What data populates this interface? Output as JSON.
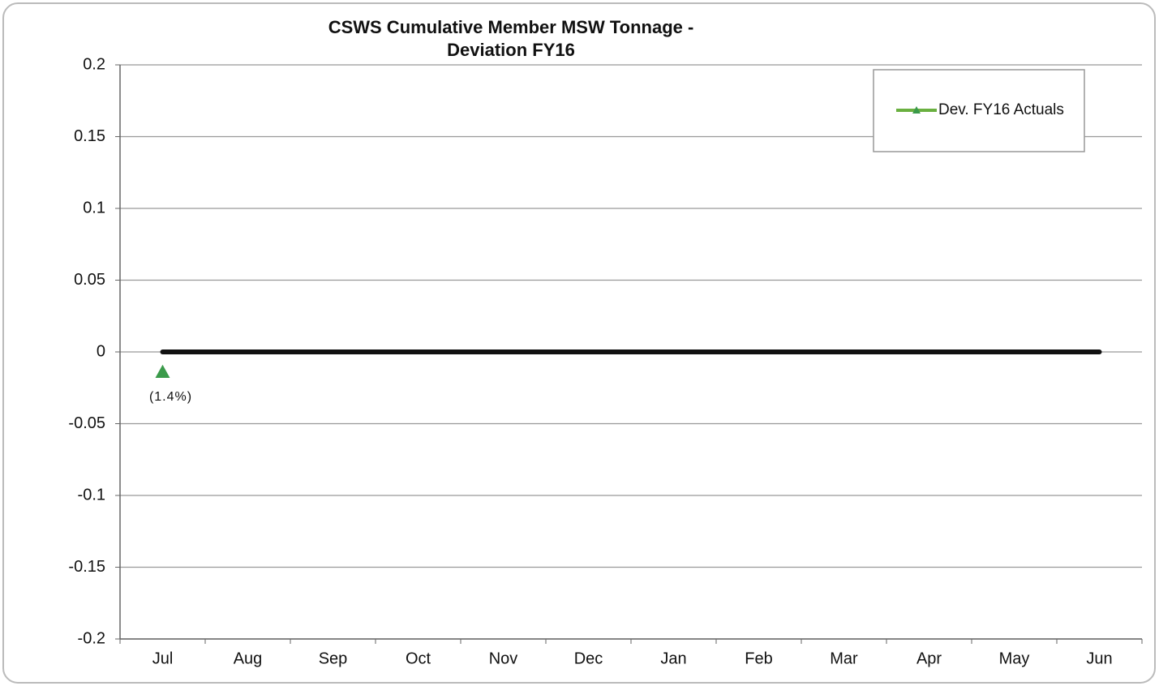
{
  "chart_data": {
    "type": "line",
    "title": "CSWS Cumulative Member MSW Tonnage - Deviation FY16",
    "categories": [
      "Jul",
      "Aug",
      "Sep",
      "Oct",
      "Nov",
      "Dec",
      "Jan",
      "Feb",
      "Mar",
      "Apr",
      "May",
      "Jun"
    ],
    "series": [
      {
        "name": "Dev. FY16 Actuals",
        "color": "#3a9a4a",
        "values": [
          -0.014,
          null,
          null,
          null,
          null,
          null,
          null,
          null,
          null,
          null,
          null,
          null
        ],
        "value_labels": [
          "(1.4%)",
          null,
          null,
          null,
          null,
          null,
          null,
          null,
          null,
          null,
          null,
          null
        ]
      },
      {
        "color": "#111111",
        "values": [
          0,
          0,
          0,
          0,
          0,
          0,
          0,
          0,
          0,
          0,
          0,
          0
        ]
      }
    ],
    "ylim": [
      -0.2,
      0.2
    ],
    "yticks": [
      -0.2,
      -0.15,
      -0.1,
      -0.05,
      0,
      0.05,
      0.1,
      0.15,
      0.2
    ],
    "grid": true,
    "legend": "upper right"
  }
}
